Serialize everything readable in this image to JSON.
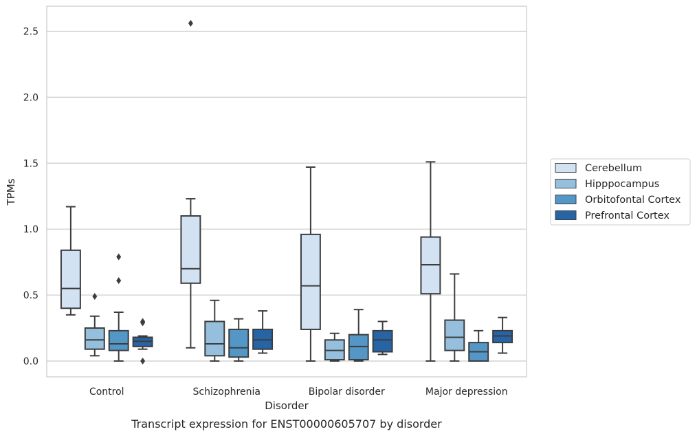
{
  "caption": "Transcript expression for ENST00000605707 by disorder",
  "chart_data": {
    "type": "boxplot",
    "xlabel": "Disorder",
    "ylabel": "TPMs",
    "ylim": [
      -0.12,
      2.69
    ],
    "yticks": [
      0.0,
      0.5,
      1.0,
      1.5,
      2.0,
      2.5
    ],
    "ytick_labels": [
      "0.0",
      "0.5",
      "1.0",
      "1.5",
      "2.0",
      "2.5"
    ],
    "grid": "horizontal",
    "legend_position": "right",
    "categories": [
      "Control",
      "Schizophrenia",
      "Bipolar disorder",
      "Major depression"
    ],
    "series": [
      {
        "name": "Cerebellum",
        "color": "#d2e2f3",
        "boxes": [
          {
            "whislo": 0.35,
            "q1": 0.4,
            "med": 0.55,
            "q3": 0.84,
            "whishi": 1.17,
            "fliers": []
          },
          {
            "whislo": 0.1,
            "q1": 0.59,
            "med": 0.7,
            "q3": 1.1,
            "whishi": 1.23,
            "fliers": [
              2.56
            ]
          },
          {
            "whislo": 0.0,
            "q1": 0.24,
            "med": 0.57,
            "q3": 0.96,
            "whishi": 1.47,
            "fliers": []
          },
          {
            "whislo": 0.0,
            "q1": 0.51,
            "med": 0.73,
            "q3": 0.94,
            "whishi": 1.51,
            "fliers": []
          }
        ]
      },
      {
        "name": "Hipppocampus",
        "color": "#95bfdd",
        "boxes": [
          {
            "whislo": 0.04,
            "q1": 0.09,
            "med": 0.16,
            "q3": 0.25,
            "whishi": 0.34,
            "fliers": [
              0.49
            ]
          },
          {
            "whislo": 0.0,
            "q1": 0.04,
            "med": 0.13,
            "q3": 0.3,
            "whishi": 0.46,
            "fliers": []
          },
          {
            "whislo": 0.0,
            "q1": 0.01,
            "med": 0.08,
            "q3": 0.16,
            "whishi": 0.21,
            "fliers": []
          },
          {
            "whislo": 0.0,
            "q1": 0.08,
            "med": 0.18,
            "q3": 0.31,
            "whishi": 0.66,
            "fliers": []
          }
        ]
      },
      {
        "name": "Orbitofontal Cortex",
        "color": "#5496c6",
        "boxes": [
          {
            "whislo": 0.0,
            "q1": 0.08,
            "med": 0.13,
            "q3": 0.23,
            "whishi": 0.37,
            "fliers": [
              0.61,
              0.79
            ]
          },
          {
            "whislo": 0.0,
            "q1": 0.03,
            "med": 0.1,
            "q3": 0.24,
            "whishi": 0.32,
            "fliers": []
          },
          {
            "whislo": 0.0,
            "q1": 0.01,
            "med": 0.11,
            "q3": 0.2,
            "whishi": 0.39,
            "fliers": []
          },
          {
            "whislo": 0.0,
            "q1": 0.0,
            "med": 0.07,
            "q3": 0.14,
            "whishi": 0.23,
            "fliers": []
          }
        ]
      },
      {
        "name": "Prefrontal Cortex",
        "color": "#2664a6",
        "boxes": [
          {
            "whislo": 0.09,
            "q1": 0.11,
            "med": 0.15,
            "q3": 0.18,
            "whishi": 0.19,
            "fliers": [
              0.0,
              0.29,
              0.3
            ]
          },
          {
            "whislo": 0.06,
            "q1": 0.09,
            "med": 0.16,
            "q3": 0.24,
            "whishi": 0.38,
            "fliers": []
          },
          {
            "whislo": 0.05,
            "q1": 0.07,
            "med": 0.16,
            "q3": 0.23,
            "whishi": 0.3,
            "fliers": []
          },
          {
            "whislo": 0.06,
            "q1": 0.14,
            "med": 0.19,
            "q3": 0.23,
            "whishi": 0.33,
            "fliers": []
          }
        ]
      }
    ]
  },
  "style": {
    "line_color": "#3d3d3d",
    "grid_color": "#cccccc",
    "frame_color": "#cccccc"
  }
}
